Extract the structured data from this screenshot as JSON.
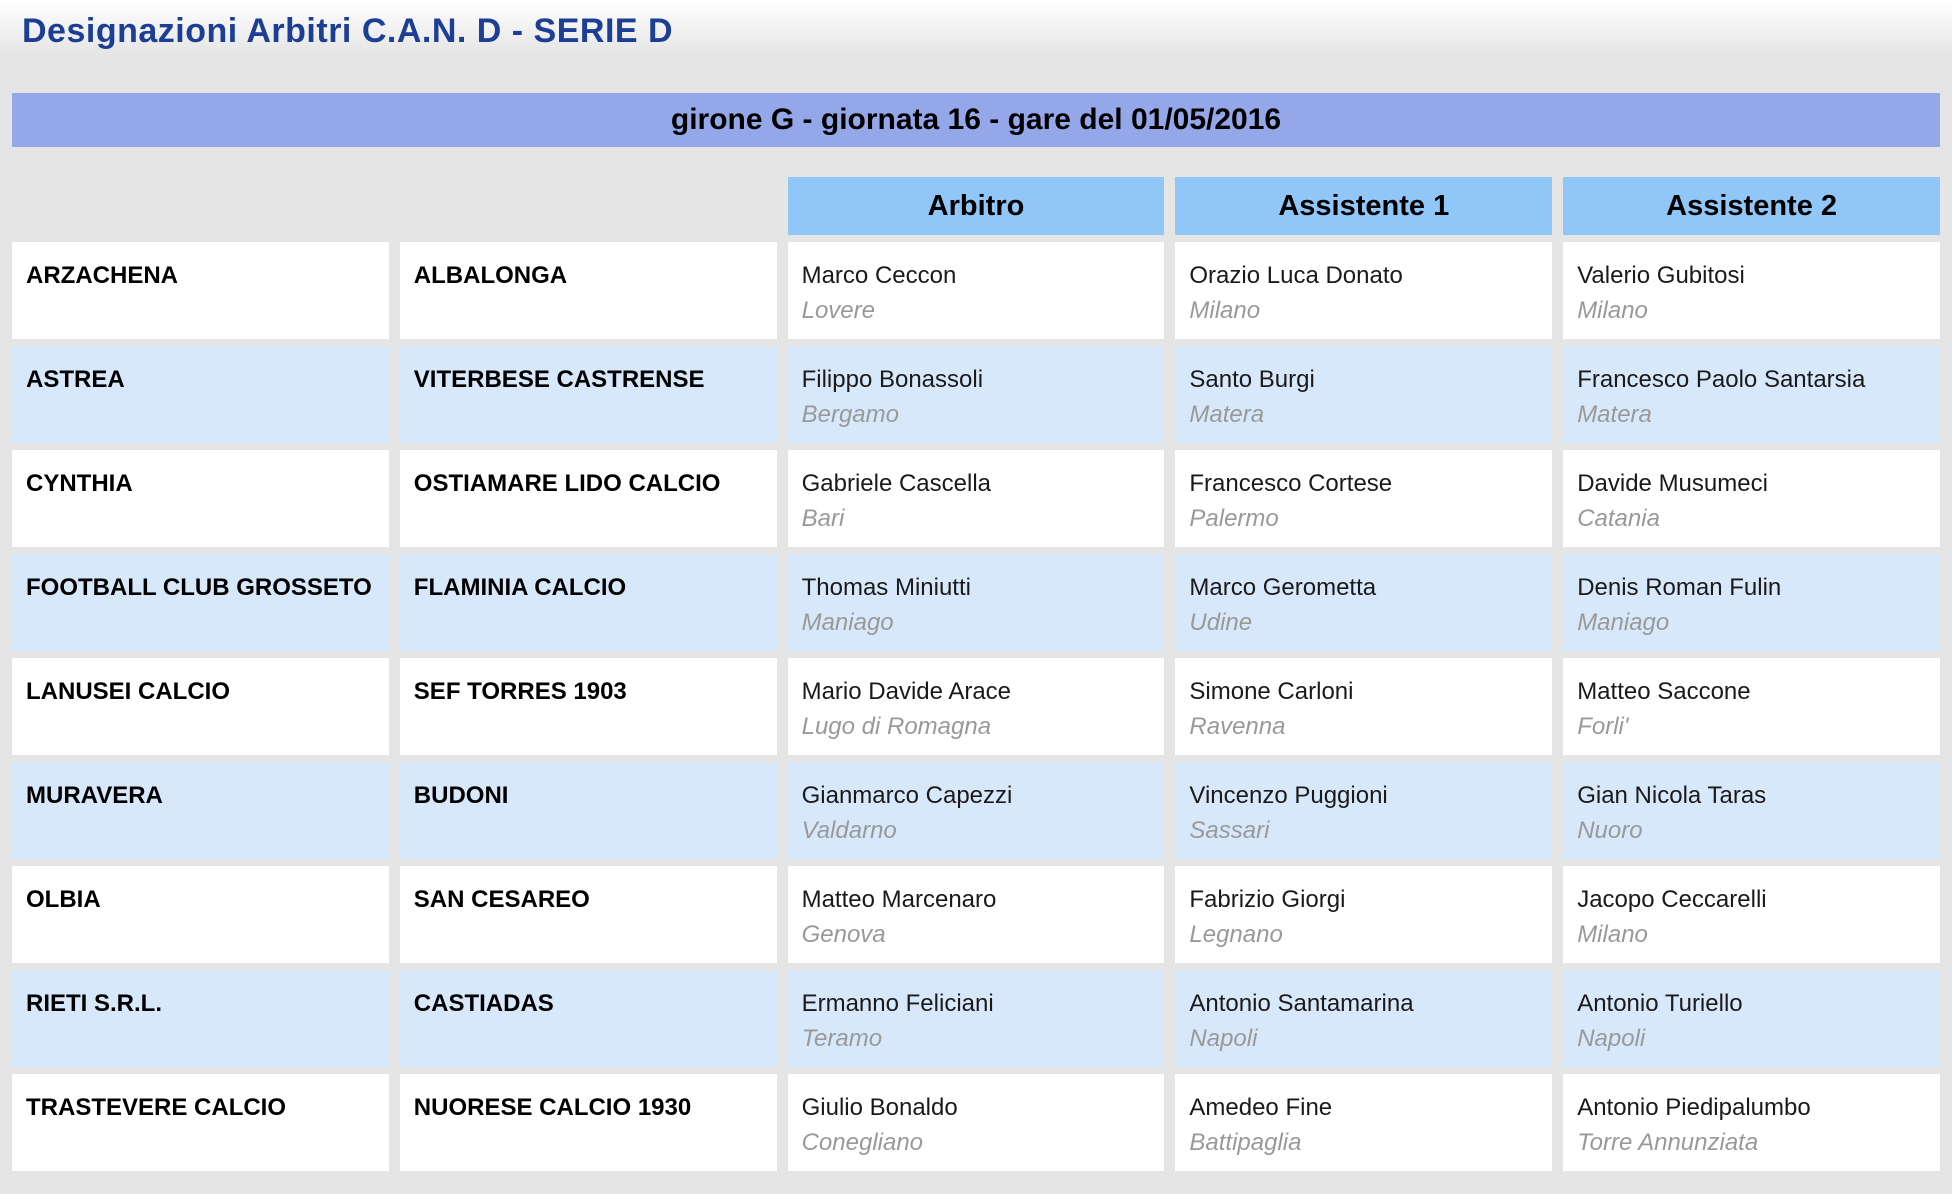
{
  "page": {
    "title": "Designazioni Arbitri C.A.N. D - SERIE D",
    "banner": "girone G - giornata 16 - gare del 01/05/2016"
  },
  "colors": {
    "title_blue": "#1c3e94",
    "banner_background": "#94a8e9",
    "header_background": "#90c7f8",
    "row_alt_background": "#d8e8fb",
    "page_background": "#e5e5e5",
    "city_gray": "#999999"
  },
  "table": {
    "headers": [
      "Arbitro",
      "Assistente 1",
      "Assistente 2"
    ],
    "rows": [
      {
        "home": "ARZACHENA",
        "away": "ALBALONGA",
        "arbitro": {
          "name": "Marco Ceccon",
          "city": "Lovere"
        },
        "assistente1": {
          "name": "Orazio Luca Donato",
          "city": "Milano"
        },
        "assistente2": {
          "name": "Valerio Gubitosi",
          "city": "Milano"
        }
      },
      {
        "home": "ASTREA",
        "away": "VITERBESE CASTRENSE",
        "arbitro": {
          "name": "Filippo Bonassoli",
          "city": "Bergamo"
        },
        "assistente1": {
          "name": "Santo Burgi",
          "city": "Matera"
        },
        "assistente2": {
          "name": "Francesco Paolo Santarsia",
          "city": "Matera"
        }
      },
      {
        "home": "CYNTHIA",
        "away": "OSTIAMARE LIDO CALCIO",
        "arbitro": {
          "name": "Gabriele Cascella",
          "city": "Bari"
        },
        "assistente1": {
          "name": "Francesco Cortese",
          "city": "Palermo"
        },
        "assistente2": {
          "name": "Davide Musumeci",
          "city": "Catania"
        }
      },
      {
        "home": "FOOTBALL CLUB GROSSETO",
        "away": "FLAMINIA CALCIO",
        "arbitro": {
          "name": "Thomas Miniutti",
          "city": "Maniago"
        },
        "assistente1": {
          "name": "Marco Gerometta",
          "city": "Udine"
        },
        "assistente2": {
          "name": "Denis Roman Fulin",
          "city": "Maniago"
        }
      },
      {
        "home": "LANUSEI CALCIO",
        "away": "SEF TORRES 1903",
        "arbitro": {
          "name": "Mario Davide Arace",
          "city": "Lugo di Romagna"
        },
        "assistente1": {
          "name": "Simone Carloni",
          "city": "Ravenna"
        },
        "assistente2": {
          "name": "Matteo Saccone",
          "city": "Forli'"
        }
      },
      {
        "home": "MURAVERA",
        "away": "BUDONI",
        "arbitro": {
          "name": "Gianmarco Capezzi",
          "city": "Valdarno"
        },
        "assistente1": {
          "name": "Vincenzo Puggioni",
          "city": "Sassari"
        },
        "assistente2": {
          "name": "Gian Nicola Taras",
          "city": "Nuoro"
        }
      },
      {
        "home": "OLBIA",
        "away": "SAN CESAREO",
        "arbitro": {
          "name": "Matteo Marcenaro",
          "city": "Genova"
        },
        "assistente1": {
          "name": "Fabrizio Giorgi",
          "city": "Legnano"
        },
        "assistente2": {
          "name": "Jacopo Ceccarelli",
          "city": "Milano"
        }
      },
      {
        "home": "RIETI S.R.L.",
        "away": "CASTIADAS",
        "arbitro": {
          "name": "Ermanno Feliciani",
          "city": "Teramo"
        },
        "assistente1": {
          "name": "Antonio Santamarina",
          "city": "Napoli"
        },
        "assistente2": {
          "name": "Antonio Turiello",
          "city": "Napoli"
        }
      },
      {
        "home": "TRASTEVERE CALCIO",
        "away": "NUORESE CALCIO 1930",
        "arbitro": {
          "name": "Giulio Bonaldo",
          "city": "Conegliano"
        },
        "assistente1": {
          "name": "Amedeo Fine",
          "city": "Battipaglia"
        },
        "assistente2": {
          "name": "Antonio Piedipalumbo",
          "city": "Torre Annunziata"
        }
      }
    ]
  }
}
